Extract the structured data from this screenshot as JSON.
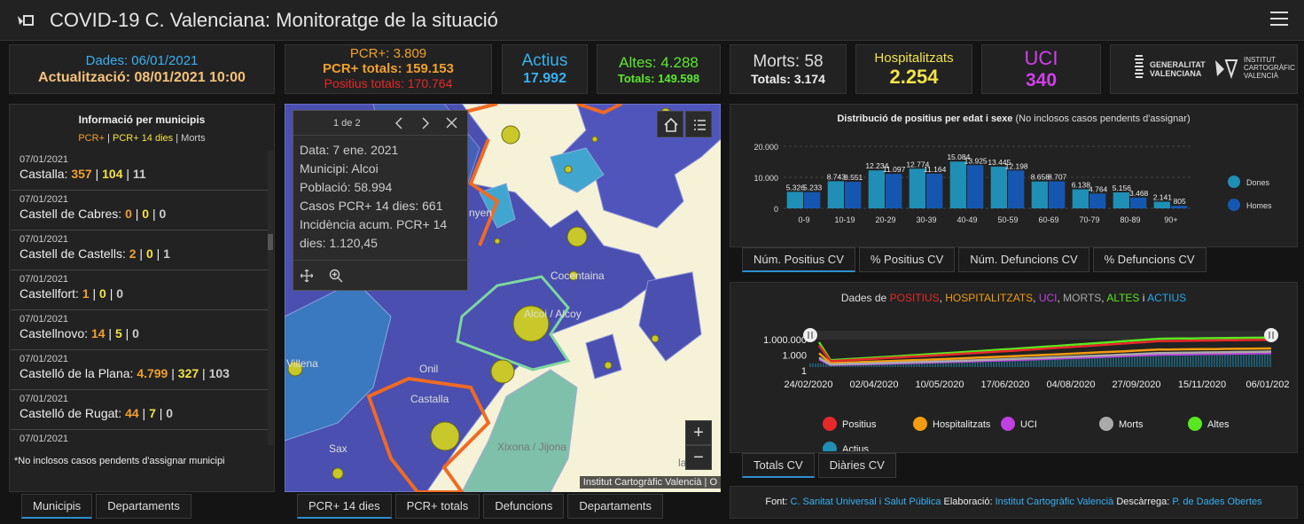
{
  "header": {
    "title": "COVID-19 C. Valenciana: Monitoratge de la situació"
  },
  "dates": {
    "dades": "Dades: 06/01/2021",
    "actualitzacio": "Actualització: 08/01/2021 10:00"
  },
  "pcr": {
    "pcr": "PCR+: 3.809",
    "totals": "PCR+ totals: 159.153",
    "positius_totals": "Positius totals: 170.764"
  },
  "actius": {
    "label": "Actius",
    "value": "17.992"
  },
  "altes": {
    "label": "Altes: 4.288",
    "totals": "Totals: 149.598"
  },
  "morts": {
    "label": "Morts: 58",
    "totals": "Totals: 3.174"
  },
  "hospitalitzats": {
    "label": "Hospitalitzats",
    "value": "2.254"
  },
  "uci": {
    "label": "UCI",
    "value": "340"
  },
  "logos": {
    "gva_line1": "GENERALITAT",
    "gva_line2": "VALENCIANA",
    "icv_line1": "INSTITUT",
    "icv_line2": "CARTOGRÀFIC",
    "icv_line3": "VALENCIÀ"
  },
  "municipis": {
    "title": "Informació per municipis",
    "legend_pcr": "PCR+",
    "legend_sep1": " | ",
    "legend_pcr14": "PCR+ 14 dies",
    "legend_sep2": " | ",
    "legend_morts": "Morts",
    "items": [
      {
        "date": "07/01/2021",
        "name": "Castalla: ",
        "a": "357",
        "b": "104",
        "c": "11"
      },
      {
        "date": "07/01/2021",
        "name": "Castell de Cabres: ",
        "a": "0",
        "b": "0",
        "c": "0"
      },
      {
        "date": "07/01/2021",
        "name": "Castell de Castells: ",
        "a": "2",
        "b": "0",
        "c": "1"
      },
      {
        "date": "07/01/2021",
        "name": "Castellfort: ",
        "a": "1",
        "b": "0",
        "c": "0"
      },
      {
        "date": "07/01/2021",
        "name": "Castellnovo: ",
        "a": "14",
        "b": "5",
        "c": "0"
      },
      {
        "date": "07/01/2021",
        "name": "Castelló de la Plana: ",
        "a": "4.799",
        "b": "327",
        "c": "103"
      },
      {
        "date": "07/01/2021",
        "name": "Castelló de Rugat: ",
        "a": "44",
        "b": "7",
        "c": "0"
      },
      {
        "date": "07/01/2021",
        "name": "",
        "a": "",
        "b": "",
        "c": ""
      }
    ],
    "footnote": "*No inclosos casos pendents d'assignar municipi",
    "tabs": [
      "Municipis",
      "Departaments"
    ]
  },
  "map": {
    "popup": {
      "pager": "1 de 2",
      "lines": [
        "Data: 7 ene. 2021",
        "Municipi: Alcoi",
        "Població: 58.994",
        "Casos PCR+ 14 dies: 661",
        "Incidència acum. PCR+ 14",
        "dies: 1.120,45"
      ]
    },
    "labels": {
      "villena": "Villena",
      "onil": "Onil",
      "castalla": "Castalla",
      "sax": "Sax",
      "xixona": "Xixona / Jijona",
      "cocentaina": "Cocentaina",
      "alcoi": "Alcoi / Alcoy",
      "nyen": "nyen",
      "la": "la"
    },
    "attribution": "Institut Cartogràfic Valencià | O",
    "zoom_in": "+",
    "zoom_out": "−",
    "tabs": [
      "PCR+ 14 dies",
      "PCR+ totals",
      "Defuncions",
      "Departaments"
    ]
  },
  "age_chart": {
    "title": "Distribució de positius per edat i sexe",
    "subtitle": " (No inclosos casos pendents d'assignar)",
    "legend": [
      "Dones",
      "Homes"
    ],
    "tabs": [
      "Núm. Positius CV",
      "% Positius CV",
      "Núm. Defuncions CV",
      "% Defuncions CV"
    ]
  },
  "chart_data": [
    {
      "type": "bar",
      "categories": [
        "0-9",
        "10-19",
        "20-29",
        "30-39",
        "40-49",
        "50-59",
        "60-69",
        "70-79",
        "80-89",
        "90+"
      ],
      "series": [
        {
          "name": "Dones",
          "values": [
            5326,
            8743,
            12234,
            12774,
            15084,
            13445,
            8658,
            6138,
            5156,
            2141
          ]
        },
        {
          "name": "Homes",
          "values": [
            5233,
            8551,
            11097,
            11164,
            13925,
            12198,
            8707,
            4764,
            3468,
            805
          ]
        }
      ],
      "data_labels_dones": [
        "5.326",
        "8.743",
        "12.234",
        "12.774",
        "15.084",
        "13.445",
        "8.658",
        "6.138",
        "5.156",
        "2.141"
      ],
      "data_labels_homes": [
        "5.233",
        "8.551",
        "11.097",
        "11.164",
        "13.925",
        "12.198",
        "8.707",
        "4.764",
        "3.468",
        "805"
      ],
      "y_ticks": [
        "20.000",
        "10.000",
        "0"
      ],
      "ylim": [
        0,
        20000
      ],
      "colors": {
        "Dones": "#1f8fb5",
        "Homes": "#1557b0"
      },
      "legend_position": "right"
    },
    {
      "type": "line",
      "title_parts": [
        "Dades de ",
        "POSITIUS",
        ", ",
        "HOSPITALITZATS",
        ", ",
        "UCI",
        ", ",
        "MORTS",
        ", ",
        "ALTES",
        " i ",
        "ACTIUS"
      ],
      "title_colors": [
        "#ddd",
        "#e8282a",
        "#ddd",
        "#f39c12",
        "#ddd",
        "#c040e0",
        "#ddd",
        "#aaa",
        "#ddd",
        "#58e820",
        "#ddd",
        "#2aa8e8"
      ],
      "x_ticks": [
        "24/02/2020",
        "02/04/2020",
        "10/05/2020",
        "17/06/2020",
        "04/08/2020",
        "27/09/2020",
        "15/11/2020",
        "06/01/202"
      ],
      "y_ticks": [
        "1.000.000",
        "1.000",
        "1"
      ],
      "scale": "log",
      "series": [
        {
          "name": "Positius",
          "color": "#e8282a"
        },
        {
          "name": "Hospitalitzats",
          "color": "#f39c12"
        },
        {
          "name": "UCI",
          "color": "#c040e0"
        },
        {
          "name": "Morts",
          "color": "#aaaaaa"
        },
        {
          "name": "Altes",
          "color": "#58e820"
        },
        {
          "name": "Actius",
          "color": "#1f8fb5"
        }
      ],
      "tabs": [
        "Totals CV",
        "Diàries CV"
      ]
    }
  ],
  "footer": {
    "font_label": "Font: ",
    "font_link": "C. Sanitat Universal i Salut Pública",
    "elab_label": " Elaboració: ",
    "elab_link": "Institut Cartogràfic Valencià",
    "desc_label": " Descàrrega: ",
    "desc_link": "P. de Dades Obertes"
  }
}
